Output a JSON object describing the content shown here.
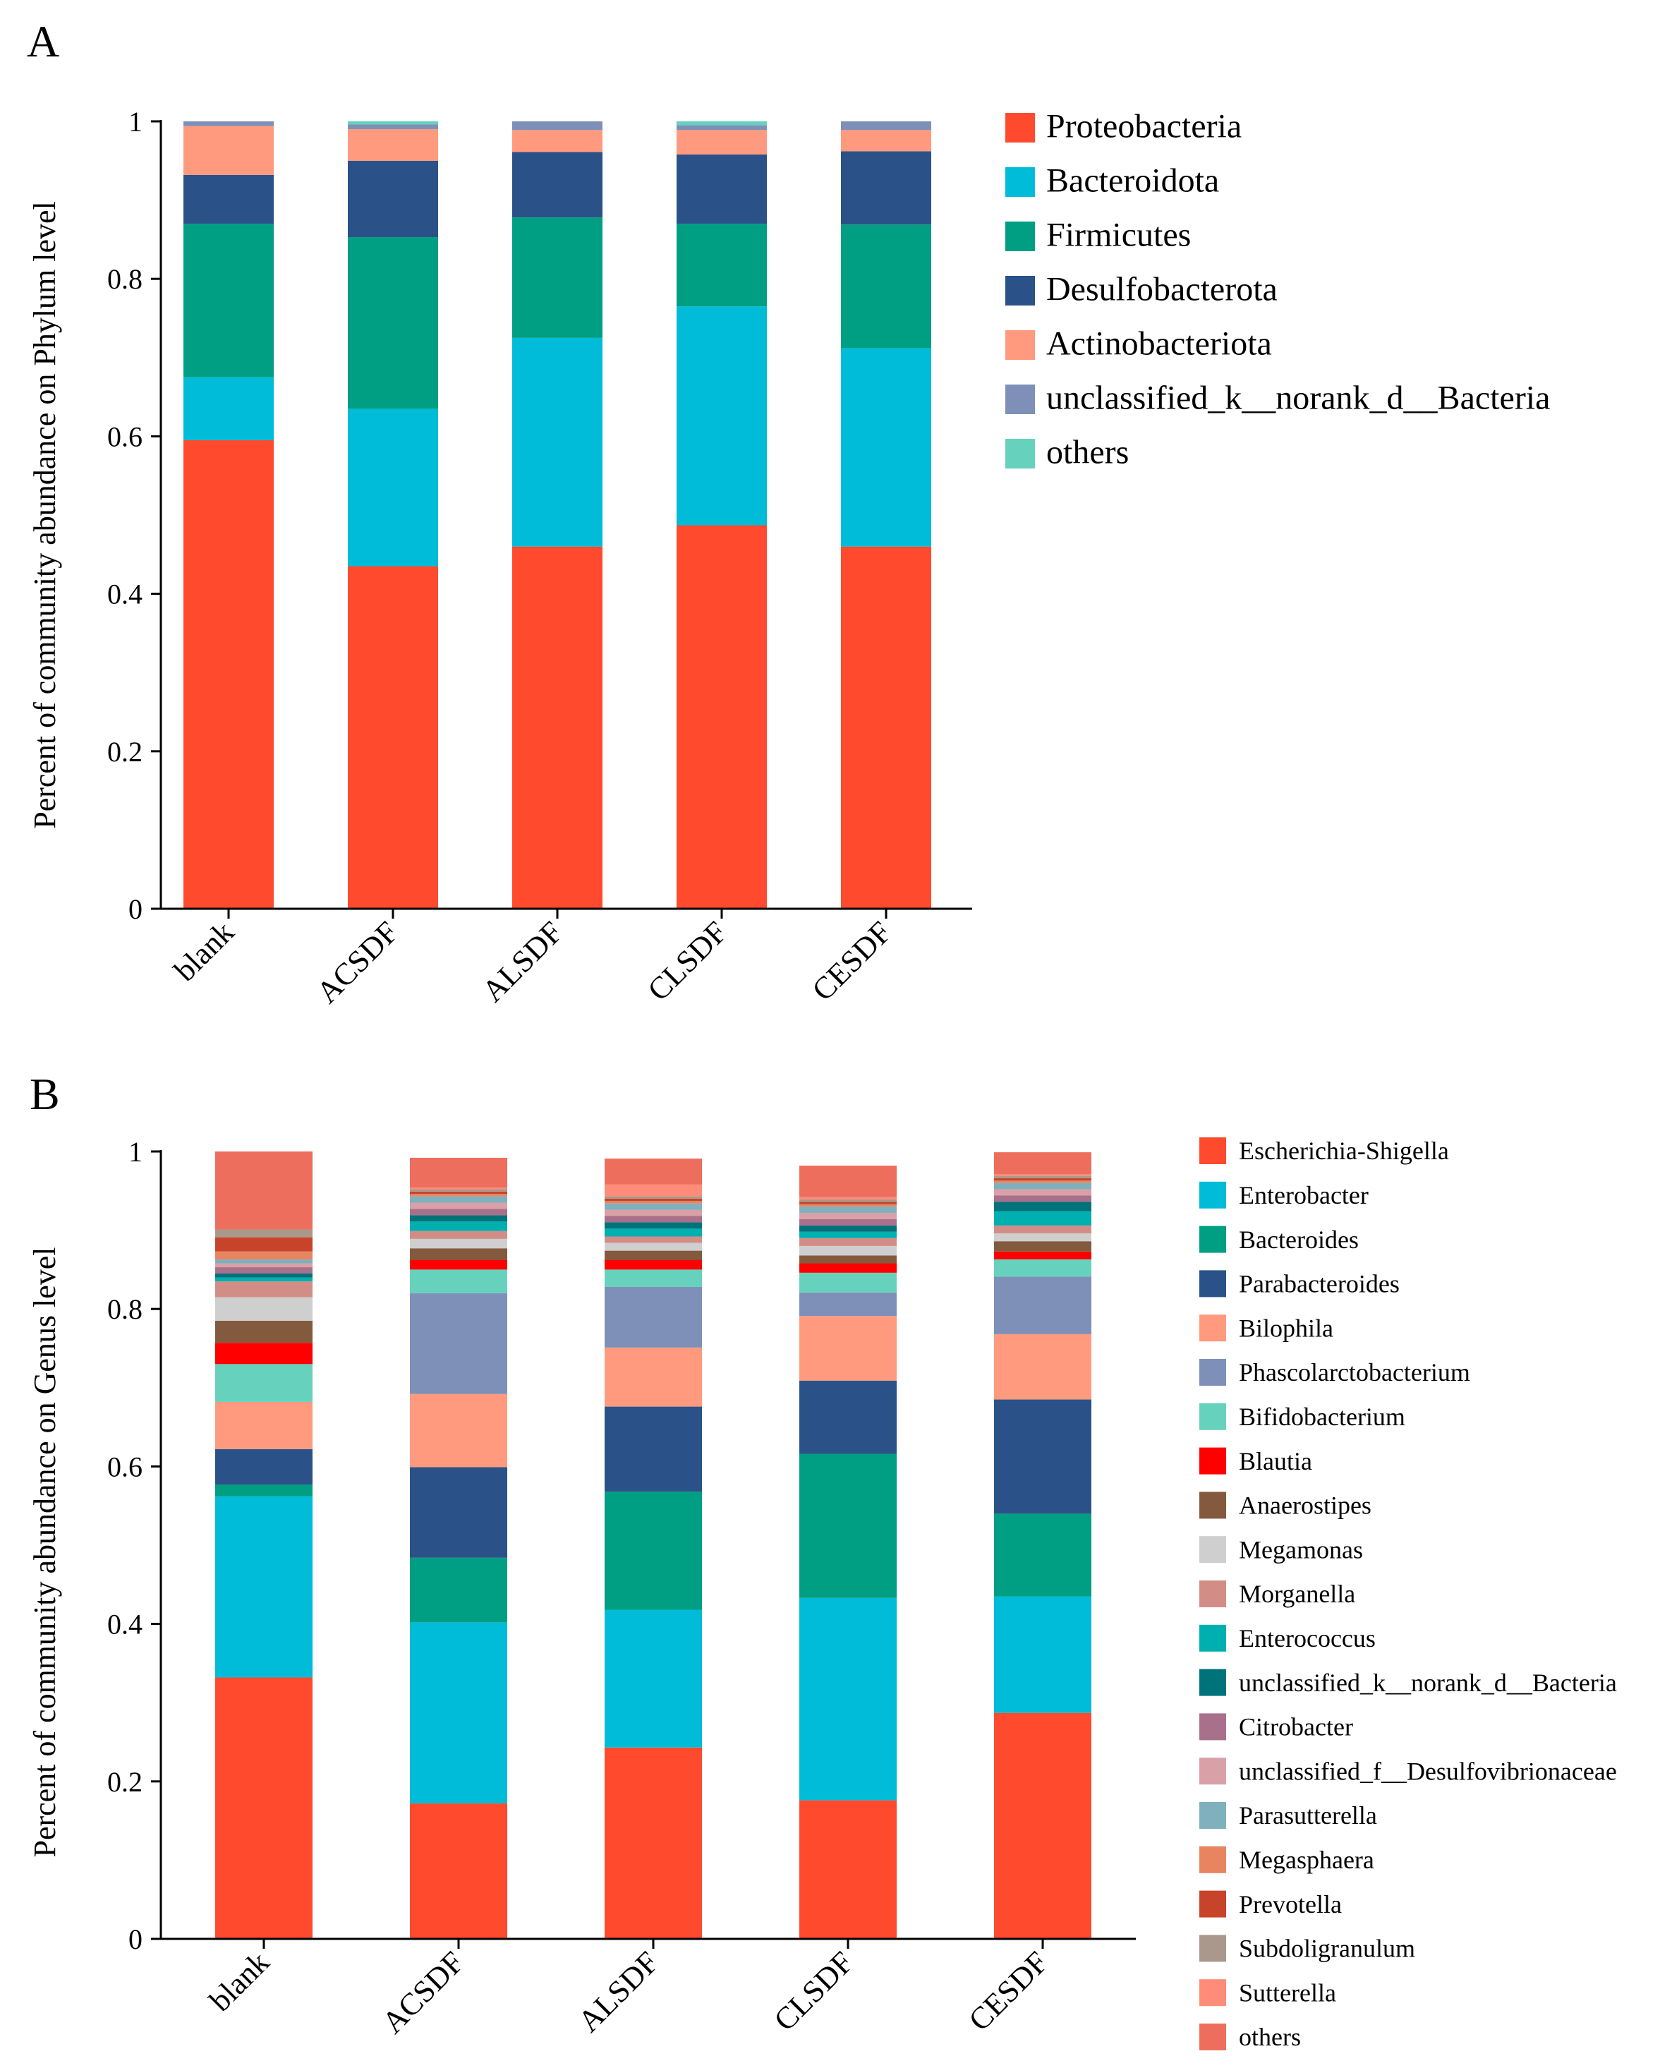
{
  "figure": {
    "panels": [
      "A",
      "B"
    ]
  },
  "chart_data": [
    {
      "panel": "A",
      "type": "bar",
      "stacked": true,
      "title": "",
      "xlabel": "",
      "ylabel": "Percent of community abundance on Phylum level",
      "ylim": [
        0,
        1
      ],
      "yticks": [
        "0",
        "0.2",
        "0.4",
        "0.6",
        "0.8",
        "1"
      ],
      "categories": [
        "blank",
        "ACSDF",
        "ALSDF",
        "CLSDF",
        "CESDF"
      ],
      "series": [
        {
          "name": "Proteobacteria",
          "color": "#FF4A2E",
          "values": [
            0.595,
            0.435,
            0.46,
            0.487,
            0.46
          ]
        },
        {
          "name": "Bacteroidota",
          "color": "#00BCD8",
          "values": [
            0.08,
            0.2,
            0.265,
            0.278,
            0.252
          ]
        },
        {
          "name": "Firmicutes",
          "color": "#009E82",
          "values": [
            0.195,
            0.218,
            0.153,
            0.105,
            0.157
          ]
        },
        {
          "name": "Desulfobacterota",
          "color": "#2A5288",
          "values": [
            0.062,
            0.097,
            0.083,
            0.088,
            0.093
          ]
        },
        {
          "name": "Actinobacteriota",
          "color": "#FF9A7E",
          "values": [
            0.062,
            0.04,
            0.028,
            0.031,
            0.027
          ]
        },
        {
          "name": "unclassified_k__norank_d__Bacteria",
          "color": "#7E90B8",
          "values": [
            0.006,
            0.006,
            0.011,
            0.006,
            0.011
          ]
        },
        {
          "name": "others",
          "color": "#66D2BD",
          "values": [
            0.0,
            0.004,
            0.0,
            0.005,
            0.0
          ]
        }
      ],
      "legend_position": "right"
    },
    {
      "panel": "B",
      "type": "bar",
      "stacked": true,
      "title": "",
      "xlabel": "",
      "ylabel": "Percent of community abundance on Genus level",
      "ylim": [
        0,
        1
      ],
      "yticks": [
        "0",
        "0.2",
        "0.4",
        "0.6",
        "0.8",
        "1"
      ],
      "categories": [
        "blank",
        "ACSDF",
        "ALSDF",
        "CLSDF",
        "CESDF"
      ],
      "series": [
        {
          "name": "Escherichia-Shigella",
          "color": "#FF4A2E",
          "values": [
            0.332,
            0.172,
            0.243,
            0.176,
            0.287
          ]
        },
        {
          "name": "Enterobacter",
          "color": "#00BCD8",
          "values": [
            0.23,
            0.23,
            0.175,
            0.257,
            0.148
          ]
        },
        {
          "name": "Bacteroides",
          "color": "#009E82",
          "values": [
            0.015,
            0.082,
            0.15,
            0.183,
            0.105
          ]
        },
        {
          "name": "Parabacteroides",
          "color": "#2A5288",
          "values": [
            0.045,
            0.115,
            0.108,
            0.093,
            0.145
          ]
        },
        {
          "name": "Bilophila",
          "color": "#FF9A7E",
          "values": [
            0.06,
            0.093,
            0.075,
            0.082,
            0.083
          ]
        },
        {
          "name": "Phascolarctobacterium",
          "color": "#7E90B8",
          "values": [
            0.0,
            0.128,
            0.077,
            0.03,
            0.073
          ]
        },
        {
          "name": "Bifidobacterium",
          "color": "#66D2BD",
          "values": [
            0.048,
            0.03,
            0.022,
            0.025,
            0.022
          ]
        },
        {
          "name": "Blautia",
          "color": "#FF0000",
          "values": [
            0.027,
            0.012,
            0.012,
            0.012,
            0.01
          ]
        },
        {
          "name": "Anaerostipes",
          "color": "#835A3D",
          "values": [
            0.028,
            0.015,
            0.012,
            0.01,
            0.013
          ]
        },
        {
          "name": "Megamonas",
          "color": "#CFCFCF",
          "values": [
            0.03,
            0.012,
            0.01,
            0.012,
            0.01
          ]
        },
        {
          "name": "Morganella",
          "color": "#D28E86",
          "values": [
            0.02,
            0.01,
            0.008,
            0.01,
            0.01
          ]
        },
        {
          "name": "Enterococcus",
          "color": "#00AFAF",
          "values": [
            0.005,
            0.012,
            0.01,
            0.008,
            0.018
          ]
        },
        {
          "name": "unclassified_k__norank_d__Bacteria",
          "color": "#00727A",
          "values": [
            0.005,
            0.008,
            0.008,
            0.008,
            0.012
          ]
        },
        {
          "name": "Citrobacter",
          "color": "#A8708A",
          "values": [
            0.008,
            0.008,
            0.008,
            0.008,
            0.008
          ]
        },
        {
          "name": "unclassified_f__Desulfovibrionaceae",
          "color": "#D9A0A8",
          "values": [
            0.005,
            0.008,
            0.008,
            0.008,
            0.008
          ]
        },
        {
          "name": "Parasutterella",
          "color": "#7FB0BE",
          "values": [
            0.005,
            0.008,
            0.008,
            0.008,
            0.008
          ]
        },
        {
          "name": "Megasphaera",
          "color": "#E88560",
          "values": [
            0.01,
            0.003,
            0.003,
            0.003,
            0.003
          ]
        },
        {
          "name": "Prevotella",
          "color": "#C7442A",
          "values": [
            0.018,
            0.003,
            0.003,
            0.003,
            0.003
          ]
        },
        {
          "name": "Subdoligranulum",
          "color": "#AA988C",
          "values": [
            0.01,
            0.003,
            0.003,
            0.003,
            0.003
          ]
        },
        {
          "name": "Sutterella",
          "color": "#FF8C78",
          "values": [
            0.0,
            0.002,
            0.015,
            0.003,
            0.002
          ]
        },
        {
          "name": "others",
          "color": "#EE6E5E",
          "values": [
            0.099,
            0.038,
            0.033,
            0.04,
            0.028
          ]
        }
      ],
      "legend_position": "right"
    }
  ]
}
